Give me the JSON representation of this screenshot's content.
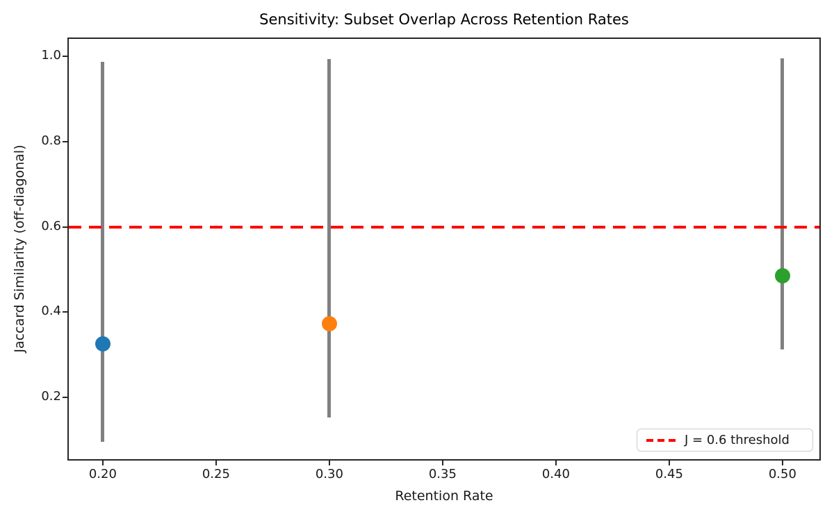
{
  "chart_data": {
    "type": "scatter",
    "title": "Sensitivity: Subset Overlap Across Retention Rates",
    "xlabel": "Retention Rate",
    "ylabel": "Jaccard Similarity (off-diagonal)",
    "xlim": [
      0.185,
      0.5163
    ],
    "ylim": [
      0.055,
      1.041
    ],
    "x_ticks": [
      0.2,
      0.25,
      0.3,
      0.35,
      0.4,
      0.45,
      0.5
    ],
    "x_tick_labels": [
      "0.20",
      "0.25",
      "0.30",
      "0.35",
      "0.40",
      "0.45",
      "0.50"
    ],
    "y_ticks": [
      0.2,
      0.4,
      0.6,
      0.8,
      1.0
    ],
    "y_tick_labels": [
      "0.2",
      "0.4",
      "0.6",
      "0.8",
      "1.0"
    ],
    "grid": false,
    "error_bar_color": "#808080",
    "series": [
      {
        "key": "retention-0.20",
        "x": 0.2,
        "y": 0.325,
        "err_lo": 0.095,
        "err_hi": 0.987,
        "color": "#1f77b4"
      },
      {
        "key": "retention-0.30",
        "x": 0.3,
        "y": 0.372,
        "err_lo": 0.153,
        "err_hi": 0.993,
        "color": "#ff7f0e"
      },
      {
        "key": "retention-0.50",
        "x": 0.5,
        "y": 0.485,
        "err_lo": 0.312,
        "err_hi": 0.996,
        "color": "#2ca02c"
      }
    ],
    "threshold_line": {
      "y": 0.6,
      "color": "#ff0000",
      "style": "dashed",
      "label": "J = 0.6 threshold"
    },
    "legend": {
      "position": "lower right",
      "entries": [
        {
          "label": "J = 0.6 threshold",
          "color": "#ff0000",
          "style": "dashed"
        }
      ]
    }
  }
}
